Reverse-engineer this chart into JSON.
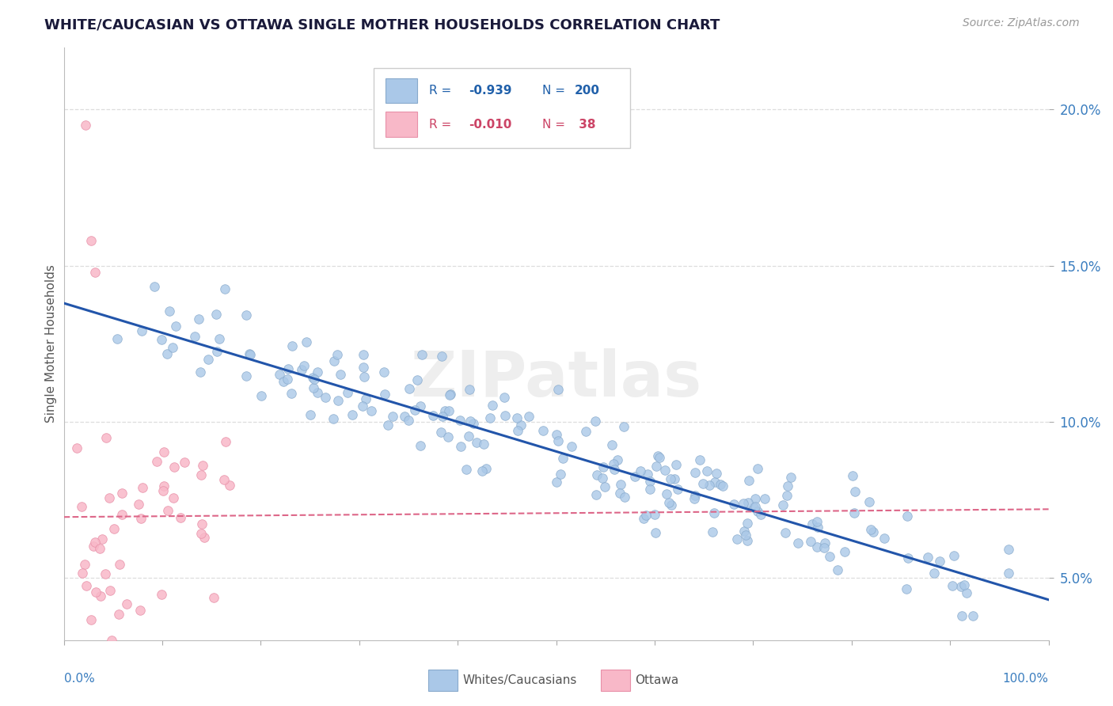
{
  "title": "WHITE/CAUCASIAN VS OTTAWA SINGLE MOTHER HOUSEHOLDS CORRELATION CHART",
  "source": "Source: ZipAtlas.com",
  "ylabel": "Single Mother Households",
  "y_tick_labels": [
    "5.0%",
    "10.0%",
    "15.0%",
    "20.0%"
  ],
  "y_tick_values": [
    0.05,
    0.1,
    0.15,
    0.2
  ],
  "watermark": "ZIPatlas",
  "blue_line_start_x": 0.0,
  "blue_line_start_y": 0.138,
  "blue_line_end_x": 1.0,
  "blue_line_end_y": 0.043,
  "pink_line_start_x": 0.0,
  "pink_line_start_y": 0.0695,
  "pink_line_end_x": 1.0,
  "pink_line_end_y": 0.072,
  "background_color": "#ffffff",
  "grid_color": "#dddddd",
  "scatter_blue_color": "#aac8e8",
  "scatter_blue_edge": "#88aacc",
  "scatter_pink_color": "#f8b8c8",
  "scatter_pink_edge": "#e890a8",
  "line_blue_color": "#2255aa",
  "line_pink_color": "#dd6688",
  "xlim": [
    0.0,
    1.0
  ],
  "ylim": [
    0.03,
    0.22
  ],
  "legend_blue_color": "#aac8e8",
  "legend_blue_edge": "#88aacc",
  "legend_pink_color": "#f8b8c8",
  "legend_pink_edge": "#e890a8",
  "legend_R_blue": "R = -0.939",
  "legend_N_blue": "N = 200",
  "legend_R_pink": "R = -0.010",
  "legend_N_pink": "N =  38"
}
